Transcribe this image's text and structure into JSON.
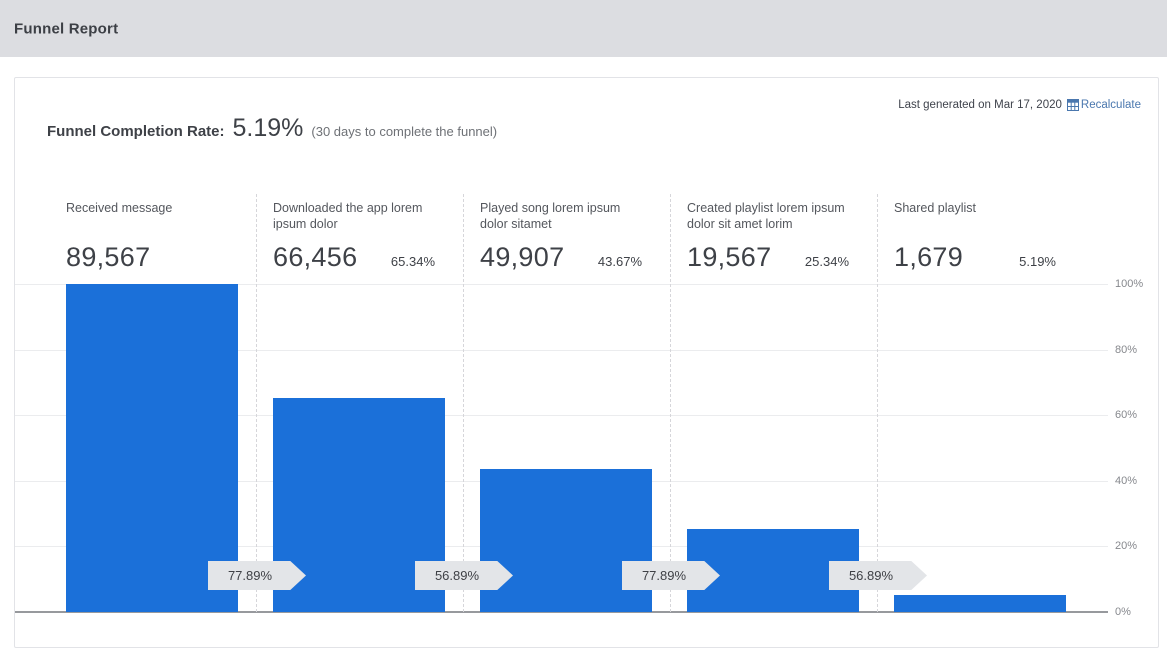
{
  "header": {
    "title": "Funnel Report"
  },
  "card": {
    "meta": {
      "last_generated": "Last generated on Mar 17, 2020",
      "recalculate_label": "Recalculate"
    },
    "title": {
      "label": "Funnel Completion Rate:",
      "rate": "5.19%",
      "note": "(30 days to complete the funnel)"
    }
  },
  "colors": {
    "bar": "#1b70d9",
    "recalculate_link": "#4a77ae",
    "header_band": "#dcdde1"
  },
  "chart_data": {
    "type": "bar",
    "title": "Funnel Report",
    "xlabel": "",
    "ylabel": "",
    "ylim": [
      0,
      100
    ],
    "grid": true,
    "legend": false,
    "y_ticks": [
      "100%",
      "80%",
      "60%",
      "40%",
      "20%",
      "0%"
    ],
    "bar_color": "#1b70d9",
    "categories": [
      "Received message",
      "Downloaded the app lorem ipsum dolor",
      "Played song lorem ipsum dolor sitamet",
      "Created playlist lorem ipsum dolor sit amet lorim",
      "Shared playlist"
    ],
    "values": [
      100,
      65.34,
      43.67,
      25.34,
      5.19
    ],
    "stages": [
      {
        "label": "Received message",
        "count_label": "89,567",
        "count": 89567,
        "pct_of_first": 100,
        "pct_label": ""
      },
      {
        "label": "Downloaded the app lorem ipsum dolor",
        "count_label": "66,456",
        "count": 66456,
        "pct_of_first": 65.34,
        "pct_label": "65.34%"
      },
      {
        "label": "Played song lorem ipsum dolor sitamet",
        "count_label": "49,907",
        "count": 49907,
        "pct_of_first": 43.67,
        "pct_label": "43.67%"
      },
      {
        "label": "Created playlist lorem ipsum dolor sit amet lorim",
        "count_label": "19,567",
        "count": 19567,
        "pct_of_first": 25.34,
        "pct_label": "25.34%"
      },
      {
        "label": "Shared playlist",
        "count_label": "1,679",
        "count": 1679,
        "pct_of_first": 5.19,
        "pct_label": "5.19%"
      }
    ],
    "transitions": [
      {
        "from": 1,
        "to": 2,
        "rate": "77.89%"
      },
      {
        "from": 2,
        "to": 3,
        "rate": "56.89%"
      },
      {
        "from": 3,
        "to": 4,
        "rate": "77.89%"
      },
      {
        "from": 4,
        "to": 5,
        "rate": "56.89%"
      }
    ]
  }
}
